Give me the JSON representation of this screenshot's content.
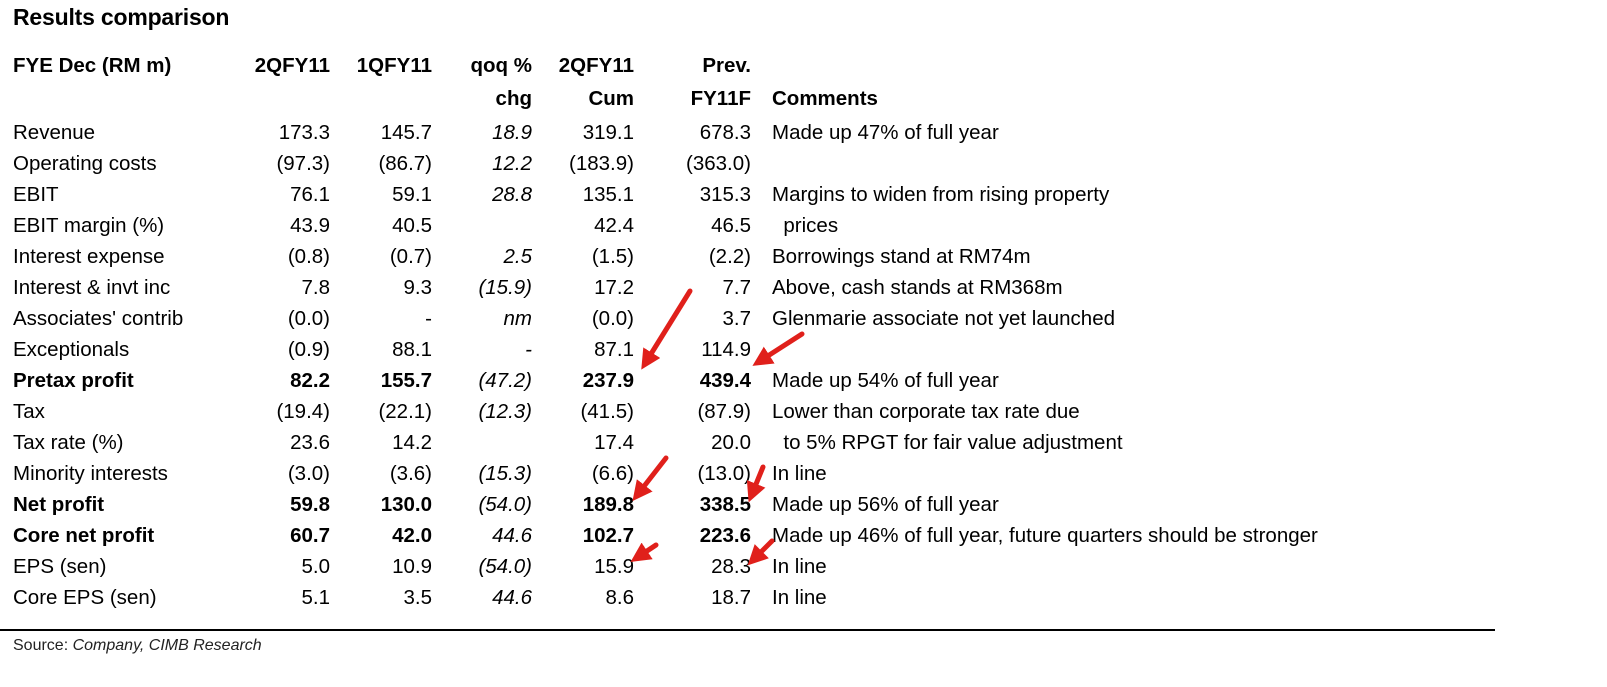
{
  "title": "Results comparison",
  "headers": {
    "label": "FYE Dec (RM m)",
    "col1": "2QFY11",
    "col2": "1QFY11",
    "col3_line1": "qoq %",
    "col3_line2": "chg",
    "col4_line1": "2QFY11",
    "col4_line2": "Cum",
    "col5_line1": "Prev.",
    "col5_line2": "FY11F",
    "comments": "Comments"
  },
  "rows": [
    {
      "label": "Revenue",
      "q2": "173.3",
      "q1": "145.7",
      "qoq": "18.9",
      "cum": "319.1",
      "prev": "678.3",
      "comment": "Made up 47% of full year",
      "bold": false
    },
    {
      "label": "Operating costs",
      "q2": "(97.3)",
      "q1": "(86.7)",
      "qoq": "12.2",
      "cum": "(183.9)",
      "prev": "(363.0)",
      "comment": "",
      "bold": false
    },
    {
      "label": "EBIT",
      "q2": "76.1",
      "q1": "59.1",
      "qoq": "28.8",
      "cum": "135.1",
      "prev": "315.3",
      "comment": "Margins to widen from rising property",
      "bold": false
    },
    {
      "label": "EBIT margin (%)",
      "q2": "43.9",
      "q1": "40.5",
      "qoq": "",
      "cum": "42.4",
      "prev": "46.5",
      "comment": "  prices",
      "bold": false
    },
    {
      "label": "Interest expense",
      "q2": "(0.8)",
      "q1": "(0.7)",
      "qoq": "2.5",
      "cum": "(1.5)",
      "prev": "(2.2)",
      "comment": "Borrowings stand at RM74m",
      "bold": false
    },
    {
      "label": "Interest & invt inc",
      "q2": "7.8",
      "q1": "9.3",
      "qoq": "(15.9)",
      "cum": "17.2",
      "prev": "7.7",
      "comment": "Above, cash stands at RM368m",
      "bold": false
    },
    {
      "label": "Associates' contrib",
      "q2": "(0.0)",
      "q1": "-",
      "qoq": "nm",
      "cum": "(0.0)",
      "prev": "3.7",
      "comment": "Glenmarie associate not yet launched",
      "bold": false
    },
    {
      "label": "Exceptionals",
      "q2": "(0.9)",
      "q1": "88.1",
      "qoq": "-",
      "cum": "87.1",
      "prev": "114.9",
      "comment": "",
      "bold": false
    },
    {
      "label": "Pretax profit",
      "q2": "82.2",
      "q1": "155.7",
      "qoq": "(47.2)",
      "cum": "237.9",
      "prev": "439.4",
      "comment": "Made up 54% of full year",
      "bold": true
    },
    {
      "label": "Tax",
      "q2": "(19.4)",
      "q1": "(22.1)",
      "qoq": "(12.3)",
      "cum": "(41.5)",
      "prev": "(87.9)",
      "comment": "Lower than corporate tax rate due",
      "bold": false
    },
    {
      "label": "Tax rate (%)",
      "q2": "23.6",
      "q1": "14.2",
      "qoq": "",
      "cum": "17.4",
      "prev": "20.0",
      "comment": "  to 5% RPGT for fair value adjustment",
      "bold": false
    },
    {
      "label": "Minority interests",
      "q2": "(3.0)",
      "q1": "(3.6)",
      "qoq": "(15.3)",
      "cum": "(6.6)",
      "prev": "(13.0)",
      "comment": "In line",
      "bold": false
    },
    {
      "label": "Net profit",
      "q2": "59.8",
      "q1": "130.0",
      "qoq": "(54.0)",
      "cum": "189.8",
      "prev": "338.5",
      "comment": "Made up 56% of full year",
      "bold": true
    },
    {
      "label": "Core net profit",
      "q2": "60.7",
      "q1": "42.0",
      "qoq": "44.6",
      "cum": "102.7",
      "prev": "223.6",
      "comment": "Made up 46% of full year, future quarters should be stronger",
      "bold": true
    },
    {
      "label": "EPS (sen)",
      "q2": "5.0",
      "q1": "10.9",
      "qoq": "(54.0)",
      "cum": "15.9",
      "prev": "28.3",
      "comment": "In line",
      "bold": false
    },
    {
      "label": "Core EPS (sen)",
      "q2": "5.1",
      "q1": "3.5",
      "qoq": "44.6",
      "cum": "8.6",
      "prev": "18.7",
      "comment": "In line",
      "bold": false
    }
  ],
  "source": {
    "prefix": "Source: ",
    "value": "Company, CIMB Research"
  },
  "colors": {
    "arrow": "#e0201b",
    "text": "#000000"
  }
}
